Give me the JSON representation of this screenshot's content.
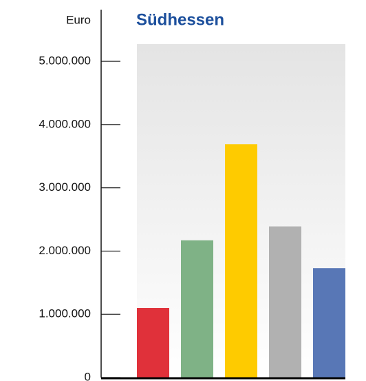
{
  "chart_data": {
    "type": "bar",
    "title": "Südhessen",
    "y_label": "Euro",
    "categories": [
      null,
      null,
      null,
      null,
      null
    ],
    "values": [
      1100000,
      2170000,
      3690000,
      2390000,
      1730000
    ],
    "colors": [
      "#e0313a",
      "#7fb286",
      "#fecb00",
      "#b1b1b1",
      "#5877b6"
    ],
    "ylim": [
      0,
      5800000
    ],
    "yticks": [
      0,
      {
        "value": 1000000,
        "label": "1.000.000"
      },
      {
        "value": 2000000,
        "label": "2.000.000"
      },
      {
        "value": 3000000,
        "label": "3.000.000"
      },
      {
        "value": 4000000,
        "label": "4.000.000"
      },
      {
        "value": 5000000,
        "label": "5.000.000"
      }
    ],
    "grid": false
  }
}
